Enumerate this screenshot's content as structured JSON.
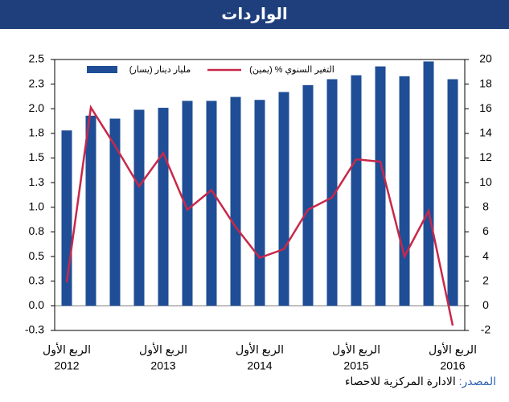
{
  "chart_data": {
    "type": "bar-line",
    "title": "الواردات",
    "categories": [
      "الربع الأول",
      null,
      null,
      null,
      "الربع الأول",
      null,
      null,
      null,
      "الربع الأول",
      null,
      null,
      null,
      "الربع الأول",
      null,
      null,
      null,
      "الربع الأول"
    ],
    "category_years": [
      "2012",
      null,
      null,
      null,
      "2013",
      null,
      null,
      null,
      "2014",
      null,
      null,
      null,
      "2015",
      null,
      null,
      null,
      "2016"
    ],
    "series": [
      {
        "name": "مليار دينار (يسار)",
        "color": "#1f4e96",
        "type": "bar",
        "values": [
          1.78,
          1.93,
          1.9,
          1.99,
          2.01,
          2.08,
          2.08,
          2.12,
          2.09,
          2.17,
          2.24,
          2.3,
          2.34,
          2.43,
          2.33,
          2.48,
          2.3
        ]
      },
      {
        "name": "التغير السنوي % (يمين)",
        "color": "#c8284a",
        "type": "line",
        "axis": "y2",
        "values": [
          1.9,
          16.1,
          13,
          9.7,
          12.4,
          7.8,
          9.4,
          6.4,
          3.9,
          4.6,
          7.8,
          8.8,
          11.9,
          11.7,
          4.0,
          7.7,
          -1.6
        ]
      }
    ],
    "ylim": [
      -0.25,
      2.5
    ],
    "yticks": [
      {
        "value": -0.25,
        "label": "-0.3"
      },
      {
        "value": 0,
        "label": "0.0"
      },
      {
        "value": 0.25,
        "label": "0.3"
      },
      {
        "value": 0.5,
        "label": "0.5"
      },
      {
        "value": 0.75,
        "label": "0.8"
      },
      {
        "value": 1,
        "label": "1.0"
      },
      {
        "value": 1.25,
        "label": "1.3"
      },
      {
        "value": 1.5,
        "label": "1.5"
      },
      {
        "value": 1.75,
        "label": "1.8"
      },
      {
        "value": 2,
        "label": "2.0"
      },
      {
        "value": 2.25,
        "label": "2.3"
      },
      {
        "value": 2.5,
        "label": "2.5"
      }
    ],
    "y2lim": [
      -2,
      20
    ],
    "y2ticks": [
      -2,
      0,
      2,
      4,
      6,
      8,
      10,
      12,
      14,
      16,
      18,
      20
    ],
    "source_label": "المصدر:",
    "source_text": "الادارة المركزية للاحصاء"
  }
}
